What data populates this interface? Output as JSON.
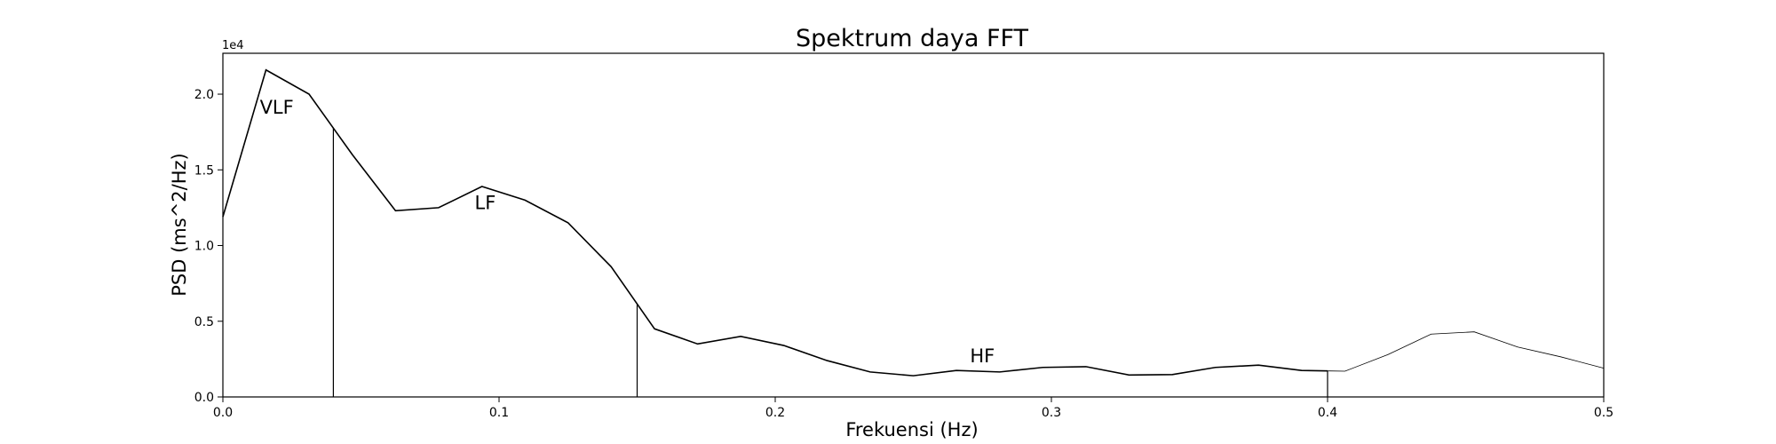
{
  "chart_data": {
    "type": "line",
    "title": "Spektrum daya FFT",
    "xlabel": "Frekuensi (Hz)",
    "ylabel": "PSD (ms^2/Hz)",
    "y_offset_label": "1e4",
    "xlim": [
      0.0,
      0.5
    ],
    "ylim": [
      0,
      22700
    ],
    "grid": false,
    "x_ticks": [
      {
        "value": 0.0,
        "label": "0.0"
      },
      {
        "value": 0.1,
        "label": "0.1"
      },
      {
        "value": 0.2,
        "label": "0.2"
      },
      {
        "value": 0.3,
        "label": "0.3"
      },
      {
        "value": 0.4,
        "label": "0.4"
      },
      {
        "value": 0.5,
        "label": "0.5"
      }
    ],
    "y_ticks": [
      {
        "value": 0,
        "label": "0.0"
      },
      {
        "value": 5000,
        "label": "0.5"
      },
      {
        "value": 10000,
        "label": "1.0"
      },
      {
        "value": 15000,
        "label": "1.5"
      },
      {
        "value": 20000,
        "label": "2.0"
      }
    ],
    "series": [
      {
        "x": [
          0.0,
          0.0156,
          0.0312,
          0.0469,
          0.0625,
          0.0781,
          0.0938,
          0.1094,
          0.125,
          0.1406,
          0.1563,
          0.1719,
          0.1875,
          0.2031,
          0.2188,
          0.2344,
          0.25,
          0.2656,
          0.2813,
          0.2969,
          0.3125,
          0.3281,
          0.3438,
          0.3594,
          0.375,
          0.3906,
          0.4063,
          0.4219,
          0.4375,
          0.4531,
          0.4688,
          0.4844,
          0.5
        ],
        "y": [
          11900,
          21600,
          20000,
          16000,
          12300,
          12500,
          13900,
          13000,
          11500,
          8600,
          4500,
          3500,
          4000,
          3400,
          2400,
          1650,
          1400,
          1750,
          1650,
          1950,
          2000,
          1450,
          1480,
          1950,
          2100,
          1750,
          1700,
          2800,
          4150,
          4300,
          3300,
          2650,
          1900
        ],
        "color": "#000000"
      }
    ],
    "bands": [
      {
        "label": "VLF",
        "start": 0.0,
        "end": 0.04,
        "label_x": 0.0195,
        "label_y": 18700
      },
      {
        "label": "LF",
        "start": 0.04,
        "end": 0.15,
        "label_x": 0.095,
        "label_y": 12400
      },
      {
        "label": "HF",
        "start": 0.15,
        "end": 0.4,
        "label_x": 0.275,
        "label_y": 2300
      }
    ]
  }
}
